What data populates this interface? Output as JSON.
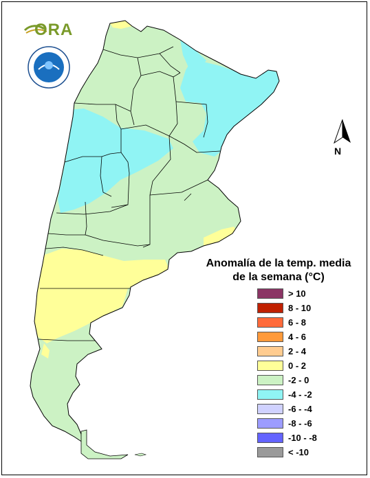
{
  "legend": {
    "title_line1": "Anomalía de la temp. media",
    "title_line2": "de la semana (°C)",
    "items": [
      {
        "label": "> 10",
        "color": "#8b3565"
      },
      {
        "label": "8 - 10",
        "color": "#c02000"
      },
      {
        "label": "6 - 8",
        "color": "#ff6a3a"
      },
      {
        "label": "4 - 6",
        "color": "#ff9a3a"
      },
      {
        "label": "2 - 4",
        "color": "#ffcc90"
      },
      {
        "label": "0 - 2",
        "color": "#ffff99"
      },
      {
        "label": "-2 - 0",
        "color": "#ccf2c4"
      },
      {
        "label": "-4 - -2",
        "color": "#90f4f4"
      },
      {
        "label": "-6 - -4",
        "color": "#d0d2ff"
      },
      {
        "label": "-8 - -6",
        "color": "#9c9cff"
      },
      {
        "label": "-10 - -8",
        "color": "#6363ff"
      },
      {
        "label": "< -10",
        "color": "#9a9a9a"
      }
    ]
  },
  "north": {
    "letter": "N"
  },
  "logo": {
    "text": "ORA"
  },
  "colors": {
    "land": "#ccf2c4",
    "cold": "#90f4f4",
    "warm": "#ffff99",
    "border": "#000000"
  }
}
